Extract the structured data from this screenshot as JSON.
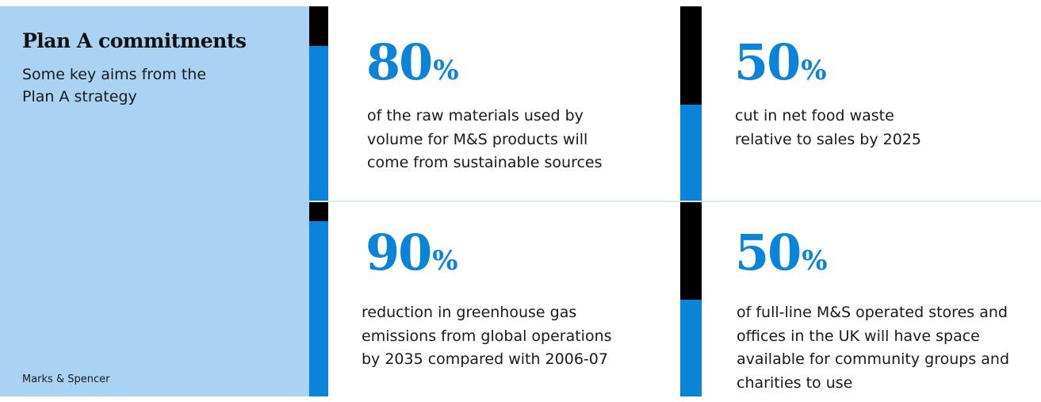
{
  "sidebar": {
    "title": "Plan A commitments",
    "subtitle": "Some key aims from the Plan A strategy",
    "source": "Marks & Spencer"
  },
  "cards": [
    {
      "number": "80",
      "unit": "%",
      "description": "of the raw materials used by volume for M&S products will come from sustainable sources"
    },
    {
      "number": "50",
      "unit": "%",
      "description": "cut in net food waste relative to sales by 2025"
    },
    {
      "number": "90",
      "unit": "%",
      "description": "reduction in greenhouse gas emissions from global operations by 2035 compared with 2006-07"
    },
    {
      "number": "50",
      "unit": "%",
      "description": "of full-line M&S operated stores and offices in the UK will have space available for community groups and charities to use"
    }
  ],
  "colors": {
    "accent": "#0a84d9",
    "panel": "#aad3f3",
    "bar_dark": "#000000"
  }
}
